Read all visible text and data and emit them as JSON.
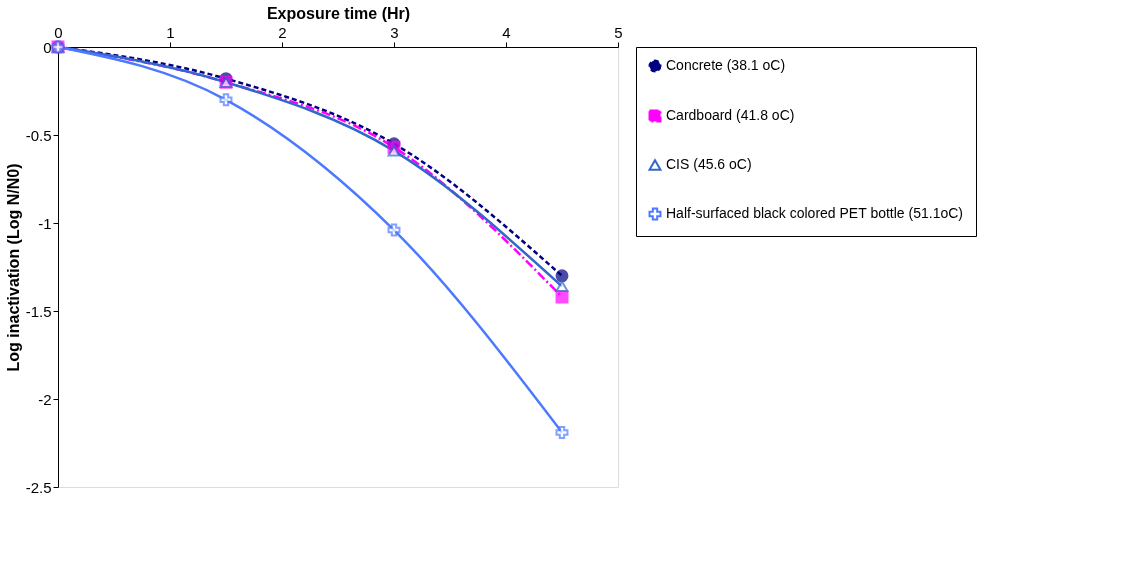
{
  "chart_data": {
    "type": "line",
    "xlabel": "Exposure time (Hr)",
    "ylabel": "Log inactivation (Log N/N0)",
    "xlim": [
      0,
      5
    ],
    "xticks": [
      0,
      1,
      2,
      3,
      4,
      5
    ],
    "ylim": [
      -2.5,
      0
    ],
    "yticks": [
      -2.5,
      -2,
      -1.5,
      -1,
      -0.5,
      0
    ],
    "x": [
      0,
      1.5,
      3,
      4.5
    ],
    "grid": false,
    "legend": "right",
    "series": [
      {
        "name": "Concrete (38.1 oC)",
        "color": "#000080",
        "values": [
          0,
          -0.18,
          -0.55,
          -1.3
        ],
        "marker": "circle",
        "line_style": "dotted"
      },
      {
        "name": "Cardboard (41.8 oC)",
        "color": "#ff00ff",
        "values": [
          0,
          -0.2,
          -0.57,
          -1.42
        ],
        "marker": "square",
        "line_style": "dashed"
      },
      {
        "name": "CIS (45.6 oC)",
        "color": "#3366cc",
        "values": [
          0,
          -0.2,
          -0.59,
          -1.36
        ],
        "marker": "triangle",
        "line_style": "solid"
      },
      {
        "name": "Half-surfaced black colored PET bottle (51.1oC)",
        "color": "#4d79ff",
        "values": [
          0,
          -0.3,
          -1.04,
          -2.19
        ],
        "marker": "cross",
        "line_style": "solid"
      }
    ]
  }
}
